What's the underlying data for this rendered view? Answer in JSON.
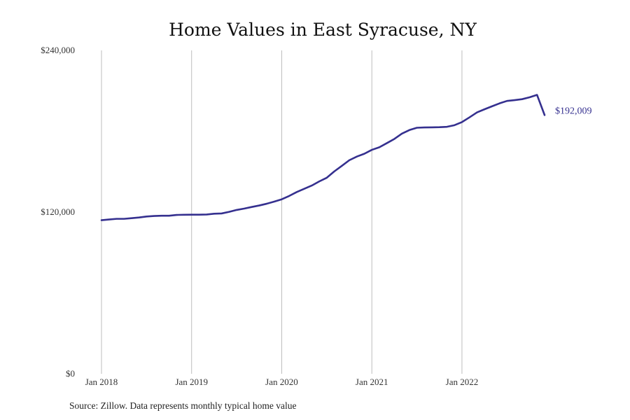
{
  "chart_data": {
    "type": "line",
    "title": "Home Values in East Syracuse, NY",
    "xlabel": "",
    "ylabel": "",
    "ylim": [
      0,
      240000
    ],
    "y_ticks": [
      {
        "value": 0,
        "label": "$0"
      },
      {
        "value": 120000,
        "label": "$120,000"
      },
      {
        "value": 240000,
        "label": "$240,000"
      }
    ],
    "x_ticks": [
      {
        "value": 2018.0,
        "label": "Jan 2018"
      },
      {
        "value": 2019.0,
        "label": "Jan 2019"
      },
      {
        "value": 2020.0,
        "label": "Jan 2020"
      },
      {
        "value": 2021.0,
        "label": "Jan 2021"
      },
      {
        "value": 2022.0,
        "label": "Jan 2022"
      }
    ],
    "xlim": [
      2018.0,
      2022.917
    ],
    "grid": "vertical",
    "line_color": "#35308f",
    "end_label": "$192,009",
    "series": [
      {
        "name": "",
        "x": [
          2018.0,
          2018.083,
          2018.167,
          2018.25,
          2018.333,
          2018.417,
          2018.5,
          2018.583,
          2018.667,
          2018.75,
          2018.833,
          2018.917,
          2019.0,
          2019.083,
          2019.167,
          2019.25,
          2019.333,
          2019.417,
          2019.5,
          2019.583,
          2019.667,
          2019.75,
          2019.833,
          2019.917,
          2020.0,
          2020.083,
          2020.167,
          2020.25,
          2020.333,
          2020.417,
          2020.5,
          2020.583,
          2020.667,
          2020.75,
          2020.833,
          2020.917,
          2021.0,
          2021.083,
          2021.167,
          2021.25,
          2021.333,
          2021.417,
          2021.5,
          2021.583,
          2021.667,
          2021.75,
          2021.833,
          2021.917,
          2022.0,
          2022.083,
          2022.167,
          2022.25,
          2022.333,
          2022.417,
          2022.5,
          2022.583,
          2022.667,
          2022.75,
          2022.833,
          2022.917
        ],
        "values": [
          114000,
          114500,
          115000,
          115000,
          115500,
          116000,
          116700,
          117100,
          117300,
          117300,
          117900,
          118000,
          118100,
          118100,
          118200,
          118800,
          119000,
          120200,
          121600,
          122600,
          123800,
          124900,
          126200,
          127800,
          129500,
          132000,
          134900,
          137300,
          139700,
          142800,
          145500,
          150200,
          154300,
          158500,
          161200,
          163300,
          166200,
          168100,
          171200,
          174300,
          178200,
          180900,
          182600,
          182800,
          182900,
          183000,
          183300,
          184500,
          186800,
          190300,
          194000,
          196300,
          198500,
          200700,
          202500,
          203100,
          203800,
          205200,
          207000,
          192009
        ]
      }
    ],
    "source_note": "Source: Zillow. Data represents monthly typical home value"
  }
}
